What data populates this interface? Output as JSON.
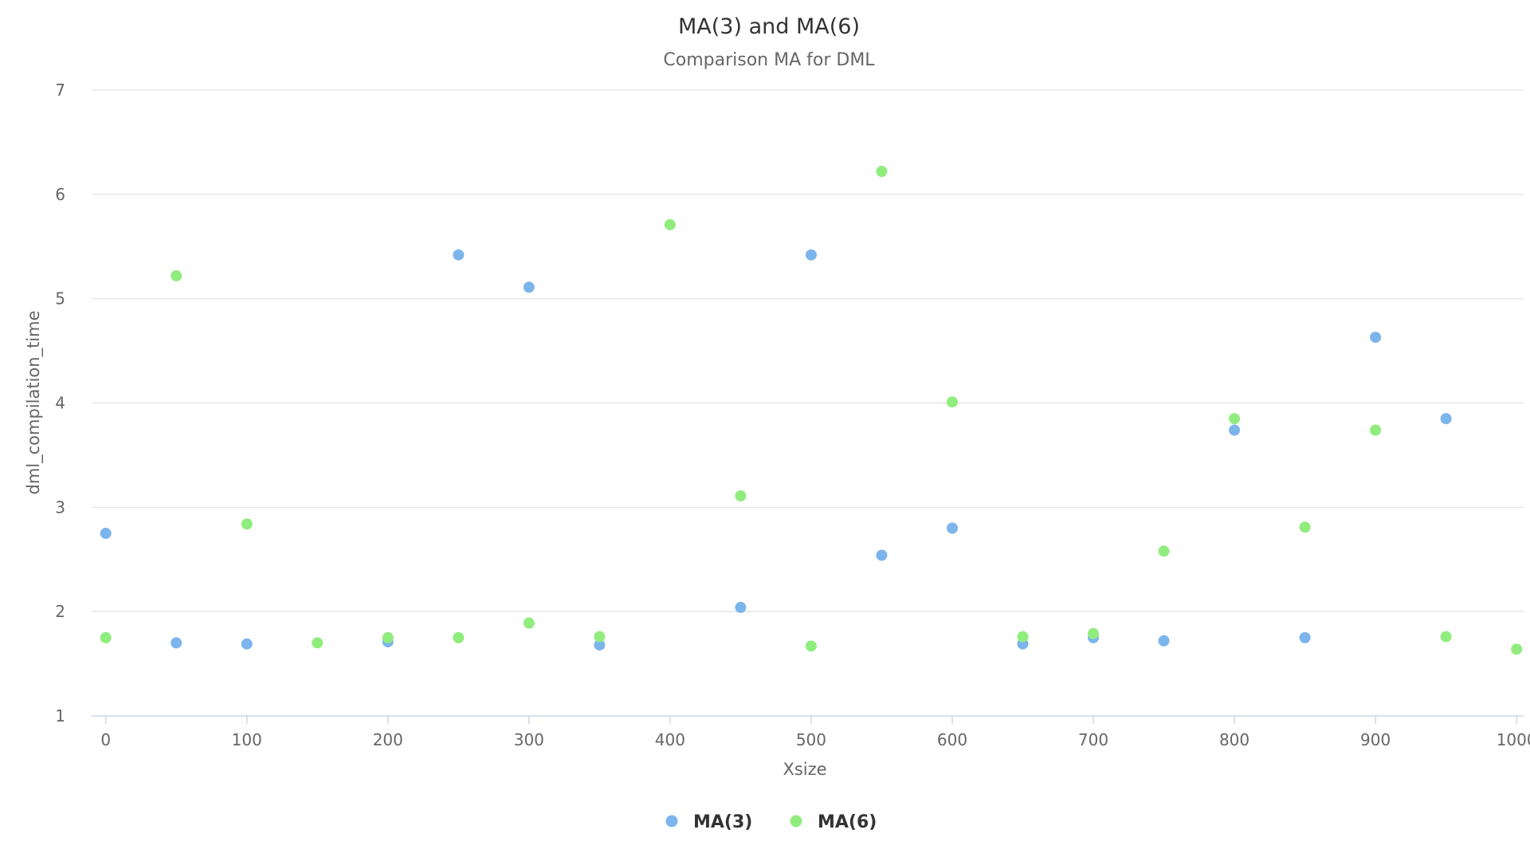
{
  "chart_data": {
    "type": "scatter",
    "title": "MA(3) and MA(6)",
    "subtitle": "Comparison MA for DML",
    "xlabel": "Xsize",
    "ylabel": "dml_compilation_time",
    "xlim": [
      -10,
      1005
    ],
    "ylim": [
      1,
      7
    ],
    "xticks": [
      0,
      100,
      200,
      300,
      400,
      500,
      600,
      700,
      800,
      900,
      1000
    ],
    "yticks": [
      1,
      2,
      3,
      4,
      5,
      6,
      7
    ],
    "grid": "horizontal",
    "legend_position": "bottom-center",
    "series": [
      {
        "name": "MA(3)",
        "color": "#7cb5ec",
        "points": [
          [
            0,
            2.75
          ],
          [
            50,
            1.7
          ],
          [
            100,
            1.69
          ],
          [
            200,
            1.71
          ],
          [
            250,
            5.42
          ],
          [
            300,
            5.11
          ],
          [
            350,
            1.68
          ],
          [
            450,
            2.04
          ],
          [
            500,
            5.42
          ],
          [
            550,
            2.54
          ],
          [
            600,
            2.8
          ],
          [
            650,
            1.69
          ],
          [
            700,
            1.75
          ],
          [
            750,
            1.72
          ],
          [
            800,
            3.74
          ],
          [
            850,
            1.75
          ],
          [
            900,
            4.63
          ],
          [
            950,
            3.85
          ]
        ]
      },
      {
        "name": "MA(6)",
        "color": "#90ed7d",
        "points": [
          [
            0,
            1.75
          ],
          [
            50,
            5.22
          ],
          [
            100,
            2.84
          ],
          [
            150,
            1.7
          ],
          [
            200,
            1.75
          ],
          [
            250,
            1.75
          ],
          [
            300,
            1.89
          ],
          [
            350,
            1.76
          ],
          [
            400,
            5.71
          ],
          [
            450,
            3.11
          ],
          [
            500,
            1.67
          ],
          [
            550,
            6.22
          ],
          [
            600,
            4.01
          ],
          [
            650,
            1.76
          ],
          [
            700,
            1.79
          ],
          [
            750,
            2.58
          ],
          [
            800,
            3.85
          ],
          [
            850,
            2.81
          ],
          [
            900,
            3.74
          ],
          [
            950,
            1.76
          ],
          [
            1000,
            1.64
          ]
        ]
      }
    ]
  }
}
